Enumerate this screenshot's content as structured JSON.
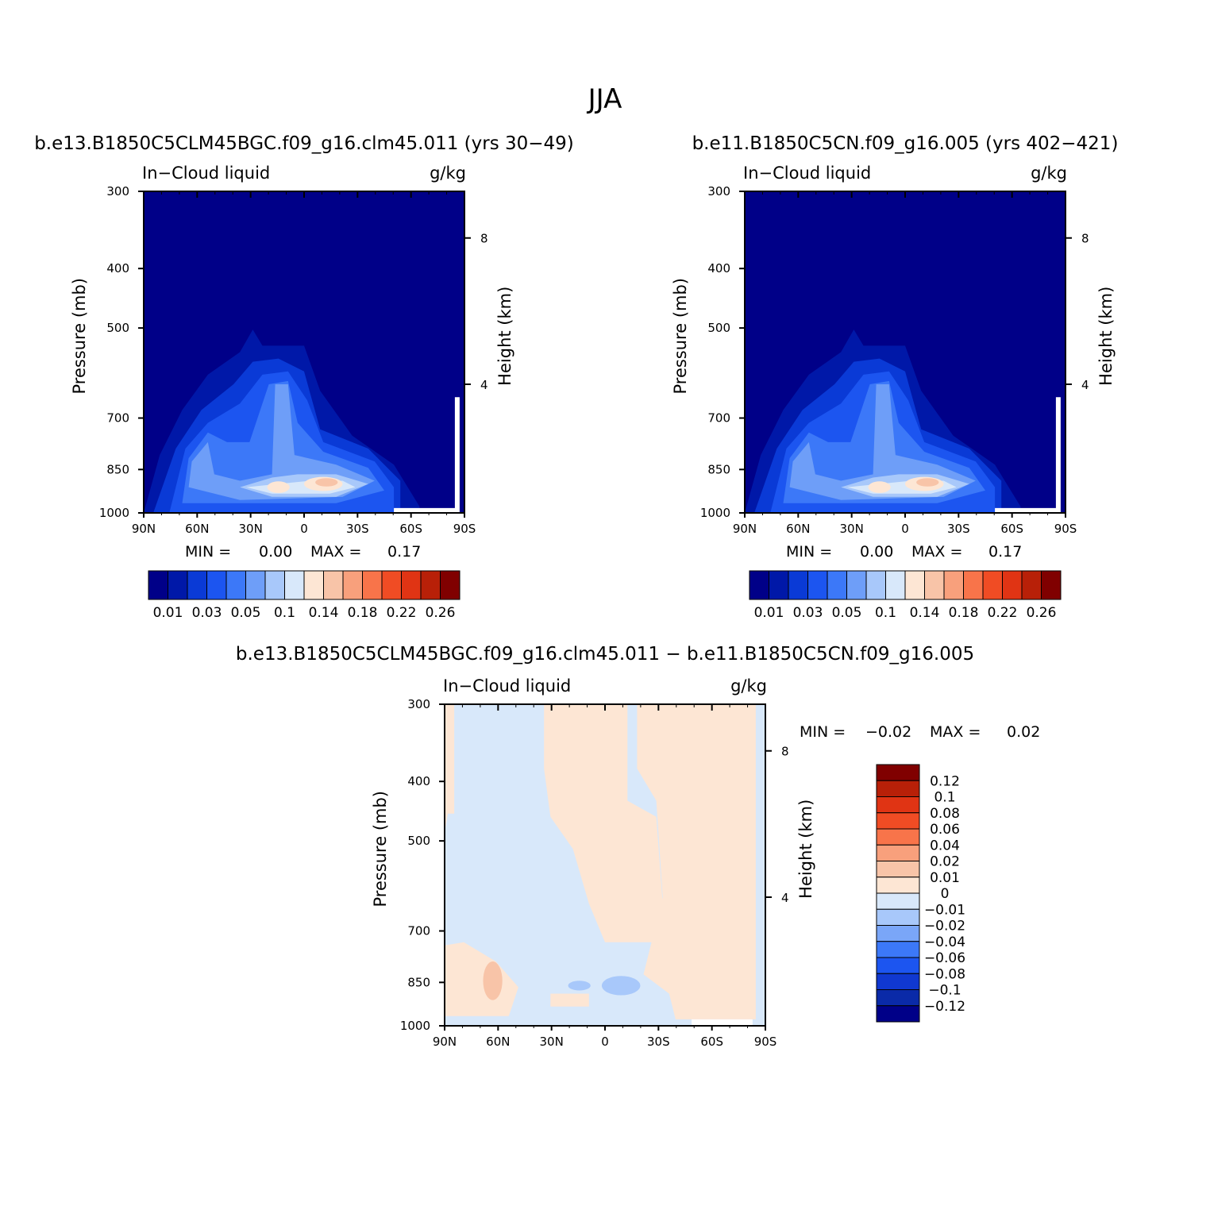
{
  "figure_title": "JJA",
  "stats_labels": {
    "min": "MIN =",
    "max": "MAX ="
  },
  "colors": {
    "base_12": [
      "#000088",
      "#0018a8",
      "#0a3ad6",
      "#1c55f0",
      "#3c78f8",
      "#6e9ef8",
      "#a8c8fa",
      "#d8e8fa",
      "#fde6d4",
      "#f8c4a8",
      "#f8a07c",
      "#f8744a",
      "#f04c24",
      "#e03414",
      "#b82008",
      "#800000"
    ],
    "diff": [
      "#000088",
      "#0a2aa8",
      "#1038d0",
      "#1c55f0",
      "#3c78f8",
      "#7aa6f8",
      "#a8c8fa",
      "#d8e8fa",
      "#fde6d4",
      "#f8c4a8",
      "#f8a07c",
      "#f8744a",
      "#f04c24",
      "#e03414",
      "#b82008",
      "#800000"
    ]
  },
  "chart_data": [
    {
      "type": "heatmap",
      "title": "b.e13.B1850C5CLM45BGC.f09_g16.clm45.011 (yrs 30−49)",
      "left_label": "In−Cloud liquid",
      "right_label": "g/kg",
      "xlabel": "",
      "ylabel": "Pressure (mb)",
      "ylabel_right": "Height (km)",
      "x_ticks": [
        "90N",
        "60N",
        "30N",
        "0",
        "30S",
        "60S",
        "90S"
      ],
      "y_ticks": [
        "300",
        "400",
        "500",
        "700",
        "850",
        "1000"
      ],
      "y_right_ticks": [
        "8",
        "4"
      ],
      "min": "0.00",
      "max": "0.17",
      "colorbar_labels": [
        "0.01",
        "0.03",
        "0.05",
        "0.1",
        "0.14",
        "0.18",
        "0.22",
        "0.26"
      ]
    },
    {
      "type": "heatmap",
      "title": "b.e11.B1850C5CN.f09_g16.005 (yrs 402−421)",
      "left_label": "In−Cloud liquid",
      "right_label": "g/kg",
      "xlabel": "",
      "ylabel": "Pressure (mb)",
      "ylabel_right": "Height (km)",
      "x_ticks": [
        "90N",
        "60N",
        "30N",
        "0",
        "30S",
        "60S",
        "90S"
      ],
      "y_ticks": [
        "300",
        "400",
        "500",
        "700",
        "850",
        "1000"
      ],
      "y_right_ticks": [
        "8",
        "4"
      ],
      "min": "0.00",
      "max": "0.17",
      "colorbar_labels": [
        "0.01",
        "0.03",
        "0.05",
        "0.1",
        "0.14",
        "0.18",
        "0.22",
        "0.26"
      ]
    },
    {
      "type": "heatmap",
      "title": "b.e13.B1850C5CLM45BGC.f09_g16.clm45.011 − b.e11.B1850C5CN.f09_g16.005",
      "left_label": "In−Cloud liquid",
      "right_label": "g/kg",
      "xlabel": "",
      "ylabel": "Pressure (mb)",
      "ylabel_right": "Height (km)",
      "x_ticks": [
        "90N",
        "60N",
        "30N",
        "0",
        "30S",
        "60S",
        "90S"
      ],
      "y_ticks": [
        "300",
        "400",
        "500",
        "700",
        "850",
        "1000"
      ],
      "y_right_ticks": [
        "8",
        "4"
      ],
      "min": "−0.02",
      "max": "0.02",
      "colorbar_labels": [
        "0.12",
        "0.1",
        "0.08",
        "0.06",
        "0.04",
        "0.02",
        "0.01",
        "0",
        "−0.01",
        "−0.02",
        "−0.04",
        "−0.06",
        "−0.08",
        "−0.1",
        "−0.12"
      ]
    }
  ]
}
